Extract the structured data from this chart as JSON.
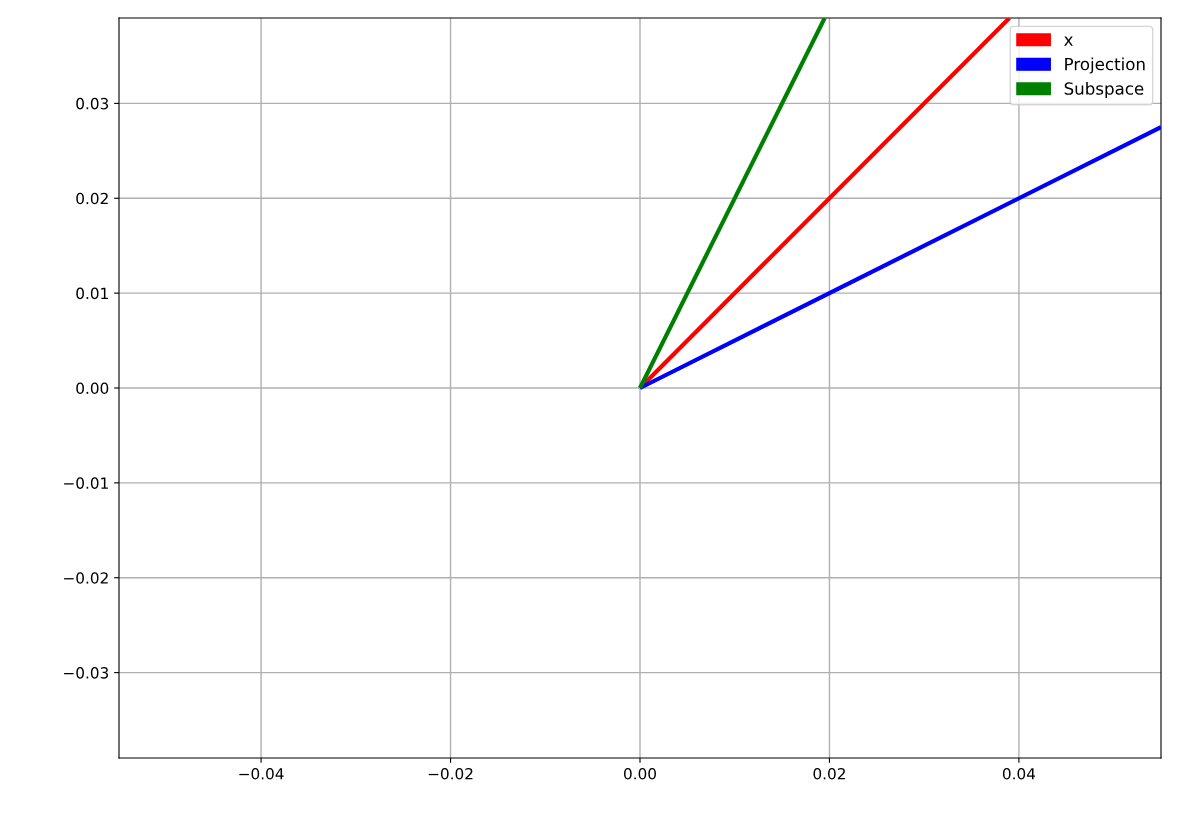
{
  "chart_data": {
    "type": "line",
    "series": [
      {
        "name": "x",
        "color": "#ff0000",
        "x": [
          0,
          0.039
        ],
        "values": [
          0,
          0.039
        ]
      },
      {
        "name": "Projection",
        "color": "#0000ff",
        "x": [
          0,
          0.055
        ],
        "values": [
          0,
          0.0275
        ]
      },
      {
        "name": "Subspace",
        "color": "#008000",
        "x": [
          0,
          0.0195
        ],
        "values": [
          0,
          0.039
        ]
      }
    ],
    "xlim": [
      -0.055,
      0.055
    ],
    "ylim": [
      -0.039,
      0.039
    ],
    "xticks": [
      {
        "value": -0.04,
        "label": "−0.04"
      },
      {
        "value": -0.02,
        "label": "−0.02"
      },
      {
        "value": 0,
        "label": "0.00"
      },
      {
        "value": 0.02,
        "label": "0.02"
      },
      {
        "value": 0.04,
        "label": "0.04"
      }
    ],
    "yticks": [
      {
        "value": -0.03,
        "label": "−0.03"
      },
      {
        "value": -0.02,
        "label": "−0.02"
      },
      {
        "value": -0.01,
        "label": "−0.01"
      },
      {
        "value": 0,
        "label": "0.00"
      },
      {
        "value": 0.01,
        "label": "0.01"
      },
      {
        "value": 0.02,
        "label": "0.02"
      },
      {
        "value": 0.03,
        "label": "0.03"
      }
    ],
    "grid": true,
    "legend": "top right",
    "marker": "none",
    "line_style": "solid"
  }
}
